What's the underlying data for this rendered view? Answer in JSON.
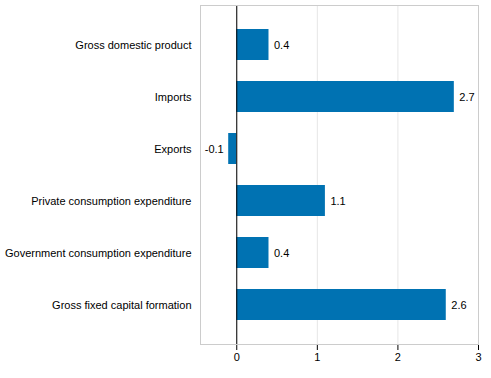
{
  "chart_data": {
    "type": "bar",
    "orientation": "horizontal",
    "categories": [
      "Gross domestic product",
      "Imports",
      "Exports",
      "Private consumption expenditure",
      "Government consumption expenditure",
      "Gross fixed capital formation"
    ],
    "values": [
      0.4,
      2.7,
      -0.1,
      1.1,
      0.4,
      2.6
    ],
    "color": "#0072b2",
    "xlim": [
      -0.45,
      3
    ],
    "xticks": [
      0,
      1,
      2,
      3
    ],
    "grid": true,
    "data_labels": true
  }
}
